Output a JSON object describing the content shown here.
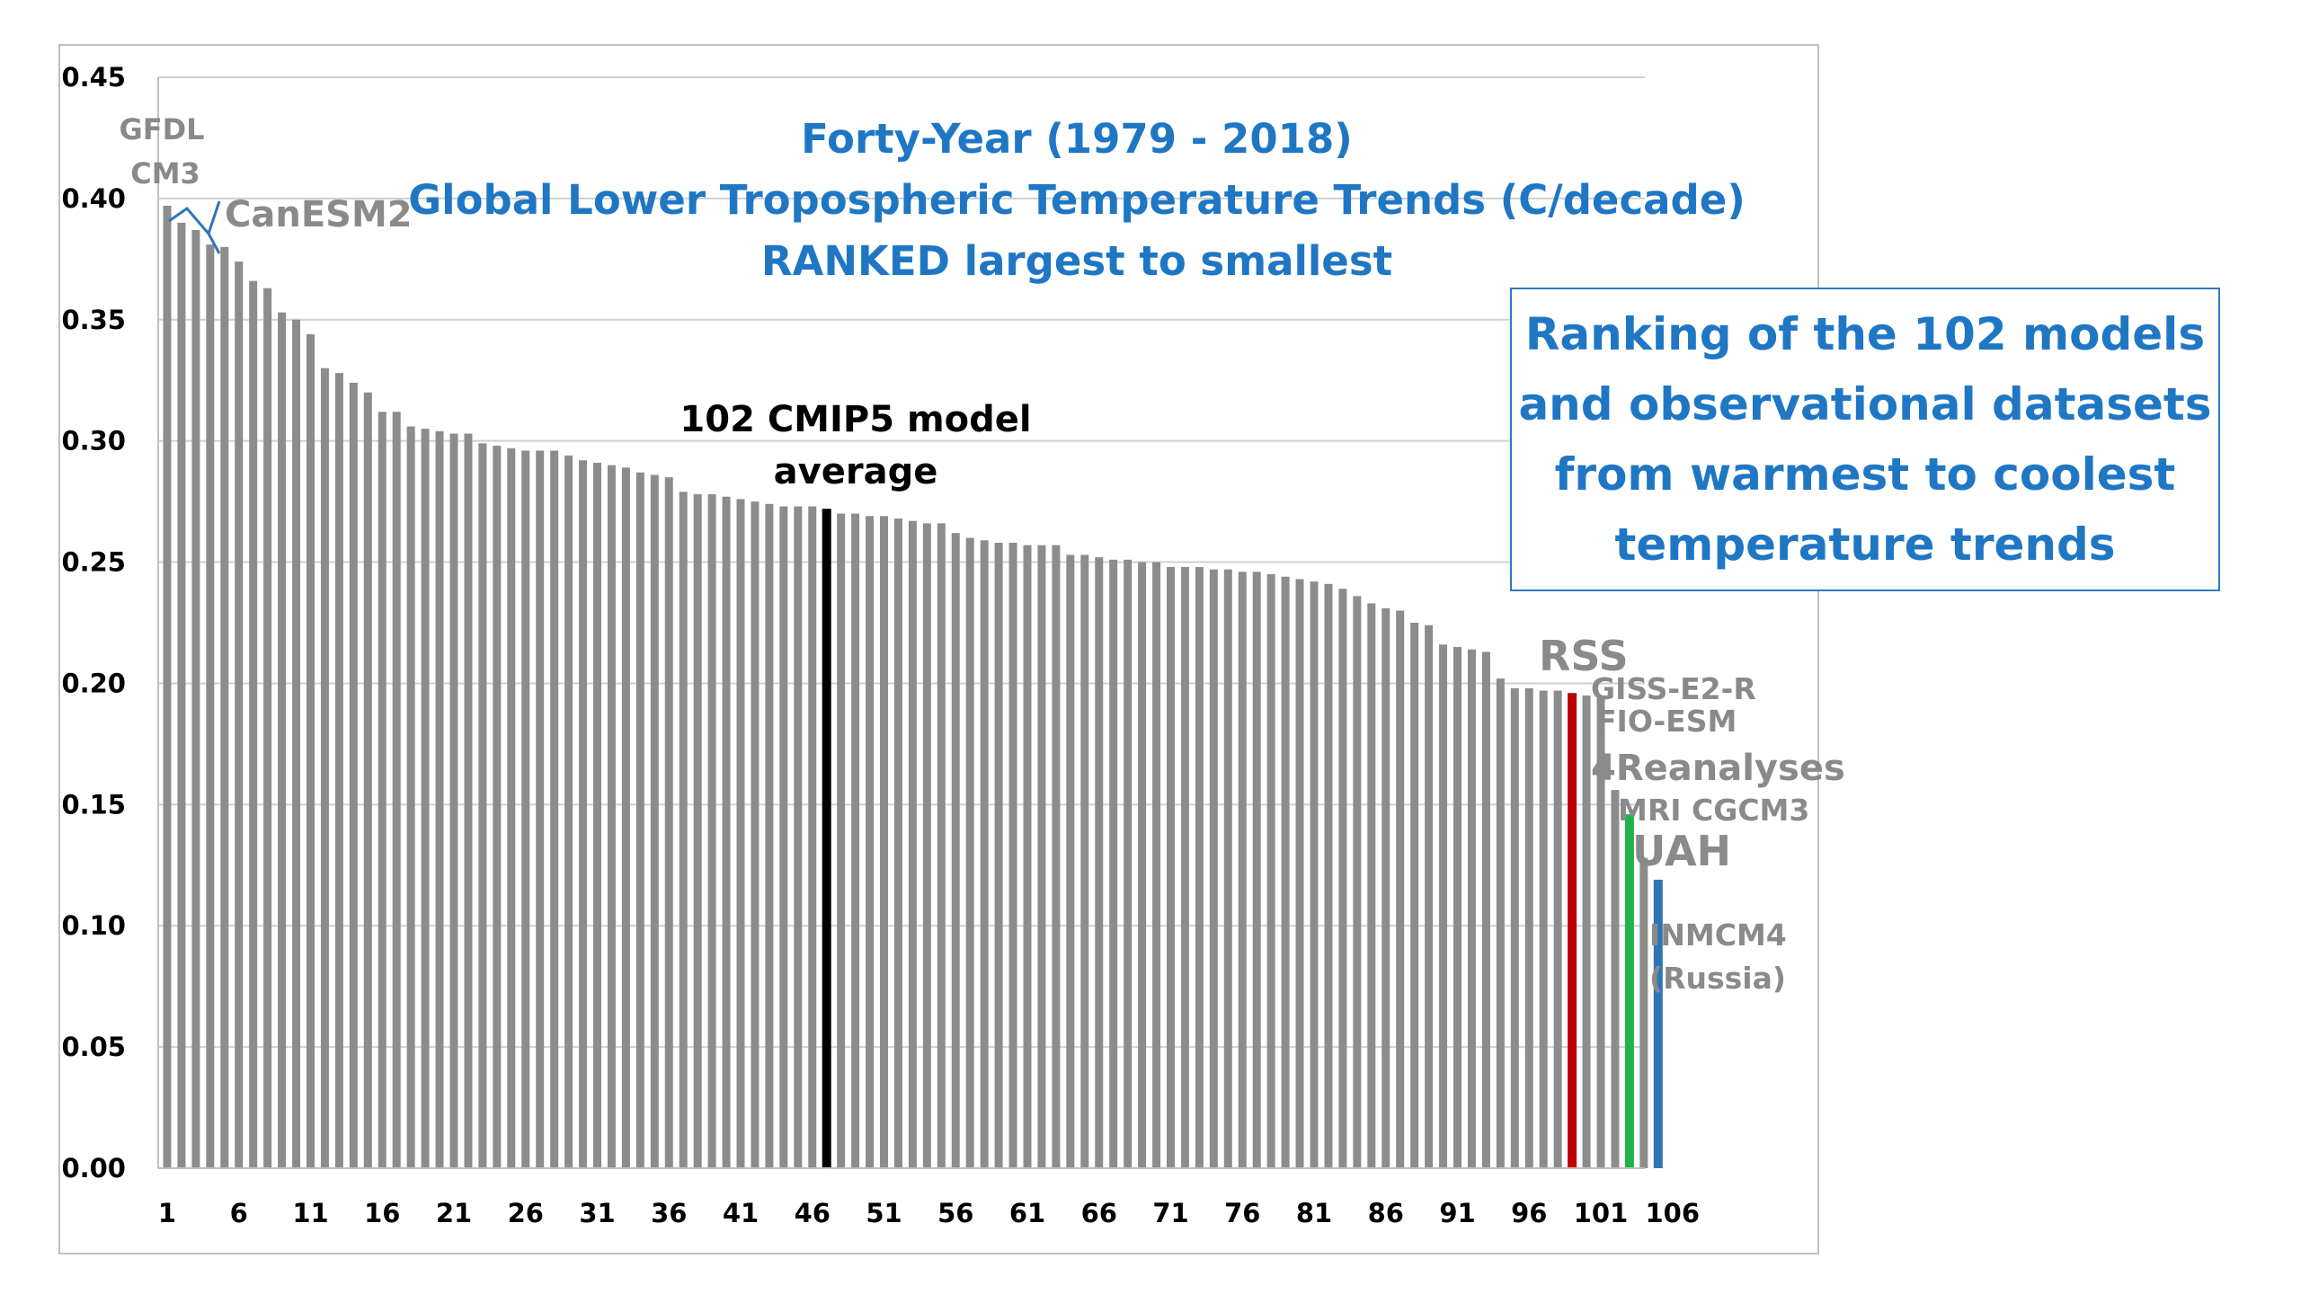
{
  "chart_data": {
    "type": "bar",
    "title_lines": [
      "Forty-Year (1979 - 2018)",
      "Global Lower Tropospheric Temperature Trends (C/decade)",
      "RANKED largest to smallest"
    ],
    "xlabel": "",
    "ylabel": "",
    "ylim": [
      0,
      0.45
    ],
    "y_ticks": [
      "0.00",
      "0.05",
      "0.10",
      "0.15",
      "0.20",
      "0.25",
      "0.30",
      "0.35",
      "0.40",
      "0.45"
    ],
    "x_ticks": [
      1,
      6,
      11,
      16,
      21,
      26,
      31,
      36,
      41,
      46,
      51,
      56,
      61,
      66,
      71,
      76,
      81,
      86,
      91,
      96,
      101,
      106
    ],
    "grid": true,
    "values": [
      0.397,
      0.39,
      0.387,
      0.381,
      0.38,
      0.374,
      0.366,
      0.363,
      0.353,
      0.35,
      0.344,
      0.33,
      0.328,
      0.324,
      0.32,
      0.312,
      0.312,
      0.306,
      0.305,
      0.304,
      0.303,
      0.303,
      0.299,
      0.298,
      0.297,
      0.296,
      0.296,
      0.296,
      0.294,
      0.292,
      0.291,
      0.29,
      0.289,
      0.287,
      0.286,
      0.285,
      0.279,
      0.278,
      0.278,
      0.277,
      0.276,
      0.275,
      0.274,
      0.273,
      0.273,
      0.273,
      0.272,
      0.27,
      0.27,
      0.269,
      0.269,
      0.268,
      0.267,
      0.266,
      0.266,
      0.262,
      0.26,
      0.259,
      0.258,
      0.258,
      0.257,
      0.257,
      0.257,
      0.253,
      0.253,
      0.252,
      0.251,
      0.251,
      0.25,
      0.25,
      0.248,
      0.248,
      0.248,
      0.247,
      0.247,
      0.246,
      0.246,
      0.245,
      0.244,
      0.243,
      0.242,
      0.241,
      0.239,
      0.236,
      0.233,
      0.231,
      0.23,
      0.225,
      0.224,
      0.216,
      0.215,
      0.214,
      0.213,
      0.202,
      0.198,
      0.198,
      0.197,
      0.197,
      0.196,
      0.195,
      0.194,
      0.156,
      0.146,
      0.128,
      0.119
    ],
    "highlights": [
      {
        "index": 47,
        "label": "102 CMIP5 model average",
        "color": "#000000"
      },
      {
        "index": 99,
        "label": "RSS",
        "color": "#c00000"
      },
      {
        "index": 103,
        "label": "4Reanalyses",
        "color": "#22b14c"
      },
      {
        "index": 105,
        "label": "UAH",
        "color": "#2e75b6"
      }
    ],
    "bar_color": "#8c8c8c",
    "annotations": [
      {
        "text": "GFDL",
        "color": "#8a8a8a"
      },
      {
        "text": "CM3",
        "color": "#8a8a8a"
      },
      {
        "text": "CanESM2",
        "color": "#8a8a8a"
      },
      {
        "text": "102 CMIP5 model",
        "color": "#000000"
      },
      {
        "text": "average",
        "color": "#000000"
      },
      {
        "text": "RSS",
        "color": "#c00000"
      },
      {
        "text": "GISS-E2-R",
        "color": "#8a8a8a"
      },
      {
        "text": "FIO-ESM",
        "color": "#8a8a8a"
      },
      {
        "text": "4Reanalyses",
        "color": "#22b14c"
      },
      {
        "text": "MRI CGCM3",
        "color": "#8a8a8a"
      },
      {
        "text": "UAH",
        "color": "#2e75b6"
      },
      {
        "text": "INMCM4",
        "color": "#8a8a8a"
      },
      {
        "text": "(Russia)",
        "color": "#8a8a8a"
      }
    ],
    "note": "Ranking of the 102 models\nand observational datasets\nfrom warmest to coolest\ntemperature trends"
  }
}
